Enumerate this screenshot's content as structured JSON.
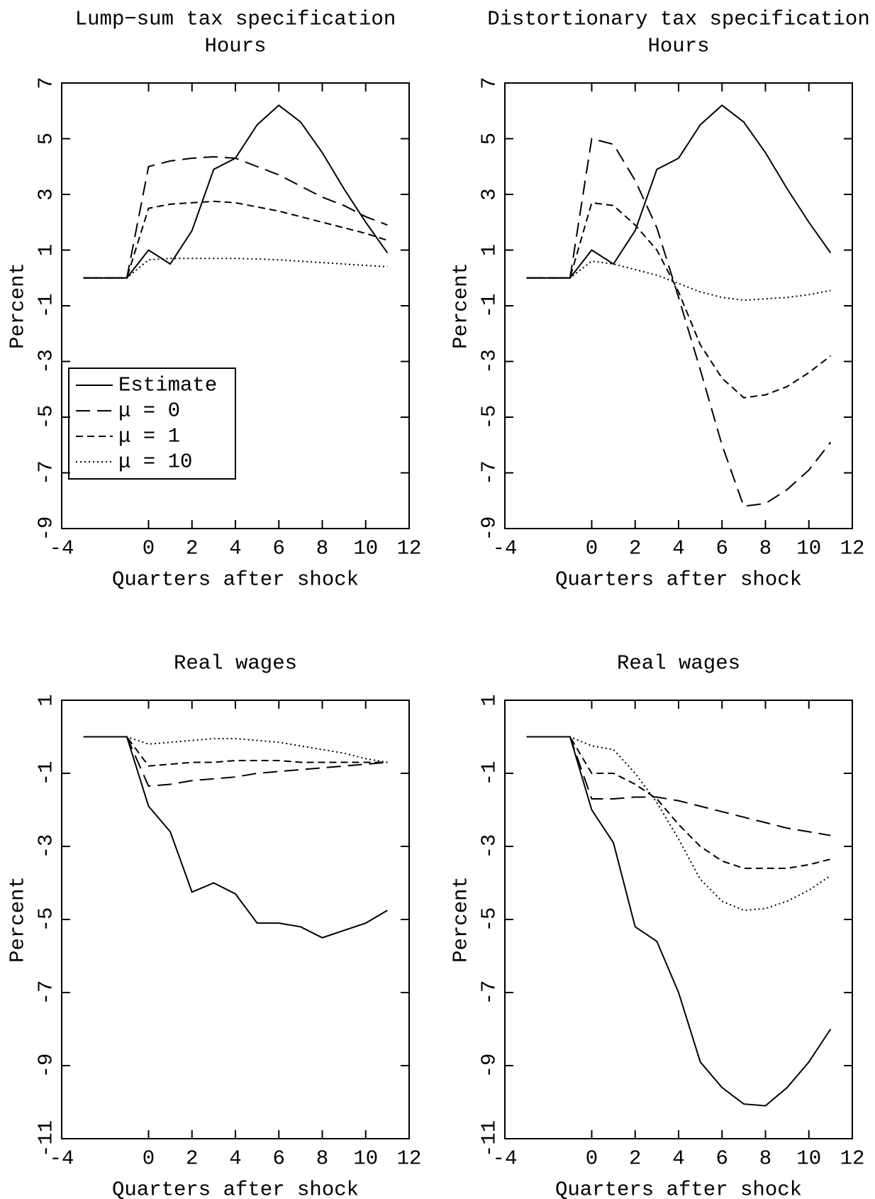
{
  "chart_data": [
    {
      "type": "line",
      "title": "Lump−sum tax specification",
      "subtitle": "Hours",
      "xlabel": "Quarters after shock",
      "ylabel": "Percent",
      "x": [
        -3,
        -2,
        -1,
        0,
        1,
        2,
        3,
        4,
        5,
        6,
        7,
        8,
        9,
        10,
        11
      ],
      "xlim": [
        -4,
        12
      ],
      "xticks": [
        -4,
        0,
        2,
        4,
        6,
        8,
        10,
        12
      ],
      "ylim": [
        -9,
        7
      ],
      "yticks": [
        -9,
        -7,
        -5,
        -3,
        -1,
        1,
        3,
        5,
        7
      ],
      "legend": "lower left",
      "series": [
        {
          "name": "Estimate",
          "color": "#000000",
          "style": "solid",
          "values": [
            0,
            0,
            0,
            1.0,
            0.5,
            1.7,
            3.9,
            4.3,
            5.5,
            6.2,
            5.6,
            4.5,
            3.2,
            2.0,
            0.9
          ]
        },
        {
          "name": "μ = 0",
          "color": "#000000",
          "style": "long-dash",
          "values": [
            0,
            0,
            0,
            4.0,
            4.2,
            4.3,
            4.35,
            4.3,
            4.0,
            3.7,
            3.3,
            2.9,
            2.6,
            2.2,
            1.9
          ]
        },
        {
          "name": "μ = 1",
          "color": "#000000",
          "style": "dash",
          "values": [
            0,
            0,
            0,
            2.5,
            2.65,
            2.7,
            2.75,
            2.7,
            2.55,
            2.4,
            2.2,
            2.0,
            1.8,
            1.6,
            1.35
          ]
        },
        {
          "name": "μ = 10",
          "color": "#000000",
          "style": "dotted",
          "values": [
            0,
            0,
            0,
            0.65,
            0.7,
            0.7,
            0.7,
            0.7,
            0.68,
            0.65,
            0.6,
            0.55,
            0.5,
            0.45,
            0.4
          ]
        }
      ]
    },
    {
      "type": "line",
      "title": "Distortionary tax specification",
      "subtitle": "Hours",
      "xlabel": "Quarters after shock",
      "ylabel": "Percent",
      "x": [
        -3,
        -2,
        -1,
        0,
        1,
        2,
        3,
        4,
        5,
        6,
        7,
        8,
        9,
        10,
        11
      ],
      "xlim": [
        -4,
        12
      ],
      "xticks": [
        -4,
        0,
        2,
        4,
        6,
        8,
        10,
        12
      ],
      "ylim": [
        -9,
        7
      ],
      "yticks": [
        -9,
        -7,
        -5,
        -3,
        -1,
        1,
        3,
        5,
        7
      ],
      "series": [
        {
          "name": "Estimate",
          "color": "#000000",
          "style": "solid",
          "values": [
            0,
            0,
            0,
            1.0,
            0.5,
            1.7,
            3.9,
            4.3,
            5.5,
            6.2,
            5.6,
            4.5,
            3.2,
            2.0,
            0.9
          ]
        },
        {
          "name": "μ = 0",
          "color": "#000000",
          "style": "long-dash",
          "values": [
            0,
            0,
            0,
            5.0,
            4.8,
            3.5,
            1.8,
            -0.7,
            -3.3,
            -6.0,
            -8.2,
            -8.1,
            -7.6,
            -6.9,
            -5.9
          ]
        },
        {
          "name": "μ = 1",
          "color": "#000000",
          "style": "dash",
          "values": [
            0,
            0,
            0,
            2.7,
            2.6,
            1.9,
            1.0,
            -0.5,
            -2.4,
            -3.6,
            -4.3,
            -4.2,
            -3.9,
            -3.4,
            -2.8
          ]
        },
        {
          "name": "μ = 10",
          "color": "#000000",
          "style": "dotted",
          "values": [
            0,
            0,
            0,
            0.6,
            0.5,
            0.3,
            0.1,
            -0.2,
            -0.5,
            -0.7,
            -0.8,
            -0.75,
            -0.7,
            -0.6,
            -0.45
          ]
        }
      ]
    },
    {
      "type": "line",
      "title": "Real wages",
      "xlabel": "Quarters after shock",
      "ylabel": "Percent",
      "x": [
        -3,
        -2,
        -1,
        0,
        1,
        2,
        3,
        4,
        5,
        6,
        7,
        8,
        9,
        10,
        11
      ],
      "xlim": [
        -4,
        12
      ],
      "xticks": [
        -4,
        0,
        2,
        4,
        6,
        8,
        10,
        12
      ],
      "ylim": [
        -11,
        1
      ],
      "yticks": [
        -11,
        -9,
        -7,
        -5,
        -3,
        -1,
        1
      ],
      "series": [
        {
          "name": "Estimate",
          "color": "#000000",
          "style": "solid",
          "values": [
            0,
            0,
            0,
            -1.9,
            -2.6,
            -4.25,
            -4.0,
            -4.3,
            -5.1,
            -5.1,
            -5.2,
            -5.5,
            -5.3,
            -5.1,
            -4.75
          ]
        },
        {
          "name": "μ = 0",
          "color": "#000000",
          "style": "long-dash",
          "values": [
            0,
            0,
            0,
            -1.35,
            -1.3,
            -1.2,
            -1.15,
            -1.1,
            -1.0,
            -0.95,
            -0.9,
            -0.85,
            -0.8,
            -0.75,
            -0.7
          ]
        },
        {
          "name": "μ = 1",
          "color": "#000000",
          "style": "dash",
          "values": [
            0,
            0,
            0,
            -0.8,
            -0.75,
            -0.7,
            -0.7,
            -0.65,
            -0.65,
            -0.65,
            -0.7,
            -0.7,
            -0.7,
            -0.7,
            -0.7
          ]
        },
        {
          "name": "μ = 10",
          "color": "#000000",
          "style": "dotted",
          "values": [
            0,
            0,
            0,
            -0.2,
            -0.15,
            -0.1,
            -0.05,
            -0.05,
            -0.1,
            -0.15,
            -0.25,
            -0.35,
            -0.45,
            -0.6,
            -0.7
          ]
        }
      ]
    },
    {
      "type": "line",
      "title": "Real wages",
      "xlabel": "Quarters after shock",
      "ylabel": "Percent",
      "x": [
        -3,
        -2,
        -1,
        0,
        1,
        2,
        3,
        4,
        5,
        6,
        7,
        8,
        9,
        10,
        11
      ],
      "xlim": [
        -4,
        12
      ],
      "xticks": [
        -4,
        0,
        2,
        4,
        6,
        8,
        10,
        12
      ],
      "ylim": [
        -11,
        1
      ],
      "yticks": [
        -11,
        -9,
        -7,
        -5,
        -3,
        -1,
        1
      ],
      "series": [
        {
          "name": "Estimate",
          "color": "#000000",
          "style": "solid",
          "values": [
            0,
            0,
            0,
            -2.0,
            -2.9,
            -5.2,
            -5.6,
            -7.0,
            -8.9,
            -9.6,
            -10.05,
            -10.1,
            -9.6,
            -8.9,
            -8.0
          ]
        },
        {
          "name": "μ = 0",
          "color": "#000000",
          "style": "long-dash",
          "values": [
            0,
            0,
            0,
            -1.7,
            -1.7,
            -1.65,
            -1.65,
            -1.75,
            -1.9,
            -2.05,
            -2.2,
            -2.35,
            -2.5,
            -2.6,
            -2.7
          ]
        },
        {
          "name": "μ = 1",
          "color": "#000000",
          "style": "dash",
          "values": [
            0,
            0,
            0,
            -1.0,
            -1.0,
            -1.3,
            -1.7,
            -2.4,
            -3.0,
            -3.4,
            -3.6,
            -3.6,
            -3.6,
            -3.5,
            -3.35
          ]
        },
        {
          "name": "μ = 10",
          "color": "#000000",
          "style": "dotted",
          "values": [
            0,
            0,
            0,
            -0.25,
            -0.35,
            -1.0,
            -1.8,
            -2.8,
            -3.9,
            -4.5,
            -4.75,
            -4.7,
            -4.5,
            -4.2,
            -3.8
          ]
        }
      ]
    }
  ]
}
